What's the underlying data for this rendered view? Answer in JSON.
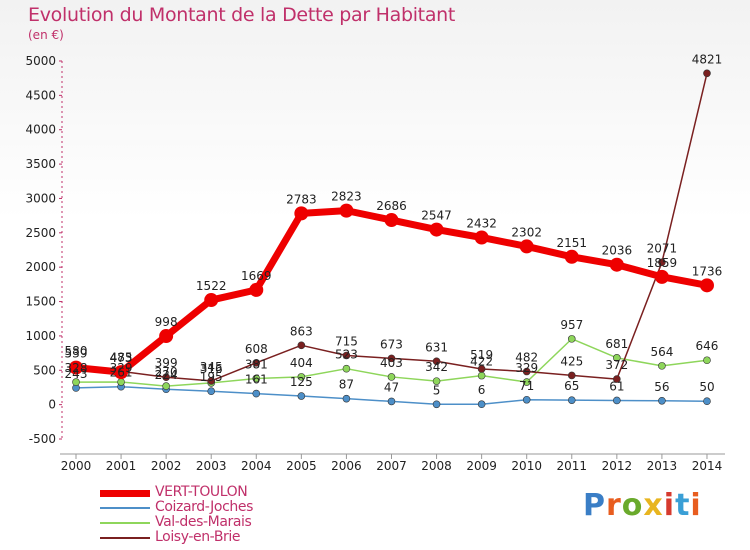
{
  "header": {
    "title": "Evolution du Montant de la Dette par Habitant",
    "subtitle": "(en €)"
  },
  "logo": {
    "text": "Proxiti",
    "colors": [
      "#3a7ec6",
      "#e85d1f",
      "#6aaa2c",
      "#e8b520",
      "#d63a2e",
      "#3a9fd6",
      "#e85d1f"
    ]
  },
  "chart_data": {
    "type": "line",
    "title": "Evolution du Montant de la Dette par Habitant",
    "subtitle": "(en €)",
    "x": [
      "2000",
      "2001",
      "2002",
      "2003",
      "2004",
      "2005",
      "2006",
      "2007",
      "2008",
      "2009",
      "2010",
      "2011",
      "2012",
      "2013",
      "2014"
    ],
    "ylim": [
      -500,
      5000
    ],
    "yticks": [
      -500,
      0,
      500,
      1000,
      1500,
      2000,
      2500,
      3000,
      3500,
      4000,
      4500,
      5000
    ],
    "grid": false,
    "legend_position": "bottom-left",
    "series": [
      {
        "name": "VERT-TOULON",
        "color": "#ee0000",
        "values": [
          539,
          473,
          998,
          1522,
          1669,
          2783,
          2823,
          2686,
          2547,
          2432,
          2302,
          2151,
          2036,
          1859,
          1736
        ],
        "labels": [
          "539",
          "473",
          "998",
          "1522",
          "1669",
          "2783",
          "2823",
          "2686",
          "2547",
          "2432",
          "2302",
          "2151",
          "2036",
          "1859",
          "1736"
        ]
      },
      {
        "name": "Coizard-Joches",
        "color": "#4d8fc8",
        "values": [
          243,
          261,
          224,
          195,
          161,
          125,
          87,
          47,
          5,
          6,
          71,
          65,
          61,
          56,
          50
        ],
        "labels": [
          "243",
          "261",
          "224",
          "195",
          "161",
          "125",
          "87",
          "47",
          "5",
          "6",
          "71",
          "65",
          "61",
          "56",
          "50"
        ]
      },
      {
        "name": "Val-des-Marais",
        "color": "#8ed65b",
        "values": [
          328,
          329,
          270,
          316,
          381,
          404,
          523,
          403,
          342,
          422,
          329,
          957,
          681,
          564,
          646
        ],
        "labels": [
          "328",
          "329",
          "270",
          "316",
          "381",
          "404",
          "523",
          "403",
          "342",
          "422",
          "329",
          "957",
          "681",
          "564",
          "646"
        ]
      },
      {
        "name": "Loisy-en-Brie",
        "color": "#7a2020",
        "values": [
          580,
          485,
          399,
          345,
          608,
          863,
          715,
          673,
          631,
          519,
          482,
          425,
          372,
          2071,
          4821
        ],
        "labels": [
          "580",
          "485",
          "399",
          "345",
          "608",
          "863",
          "715",
          "673",
          "631",
          "519",
          "482",
          "425",
          "372",
          "2071",
          "4821"
        ]
      }
    ]
  }
}
